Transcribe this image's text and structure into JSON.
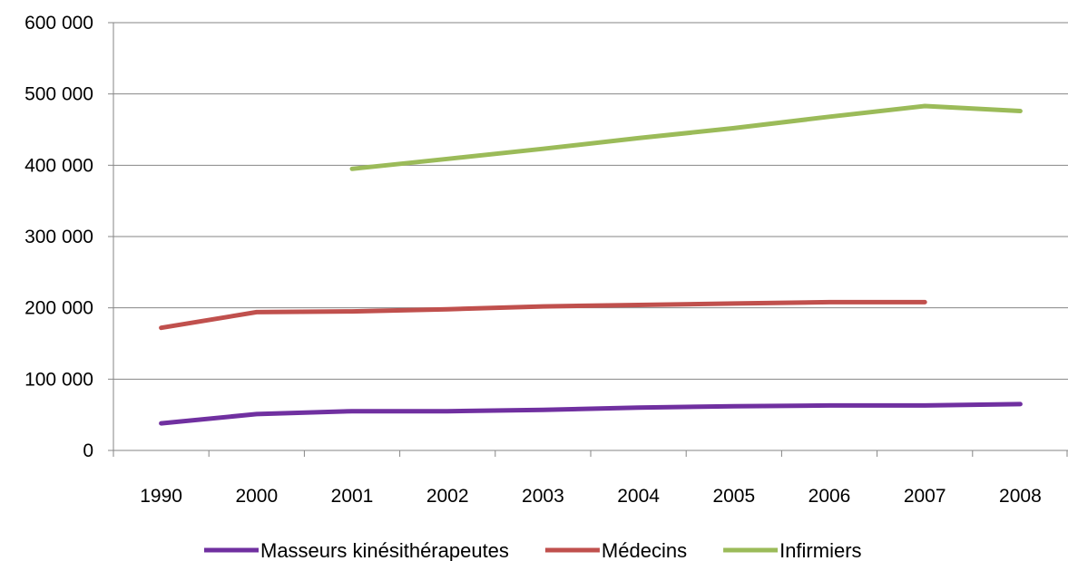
{
  "chart_data": {
    "type": "line",
    "title": "",
    "xlabel": "",
    "ylabel": "",
    "categories": [
      "1990",
      "2000",
      "2001",
      "2002",
      "2003",
      "2004",
      "2005",
      "2006",
      "2007",
      "2008"
    ],
    "ylim": [
      0,
      600000
    ],
    "yticks": [
      0,
      100000,
      200000,
      300000,
      400000,
      500000,
      600000
    ],
    "ytick_labels": [
      "0",
      "100 000",
      "200 000",
      "300 000",
      "400 000",
      "500 000",
      "600 000"
    ],
    "grid": true,
    "legend_position": "bottom",
    "series": [
      {
        "name": "Masseurs kinésithérapeutes",
        "color": "#7030a0",
        "values": [
          38000,
          51000,
          55000,
          55000,
          57000,
          60000,
          62000,
          63000,
          63000,
          65000
        ]
      },
      {
        "name": "Médecins",
        "color": "#c0504d",
        "values": [
          172000,
          194000,
          195000,
          198000,
          202000,
          204000,
          206000,
          208000,
          208000,
          null
        ]
      },
      {
        "name": "Infirmiers",
        "color": "#9bbb59",
        "values": [
          null,
          null,
          395000,
          409000,
          423000,
          438000,
          452000,
          468000,
          483000,
          476000
        ]
      }
    ]
  }
}
